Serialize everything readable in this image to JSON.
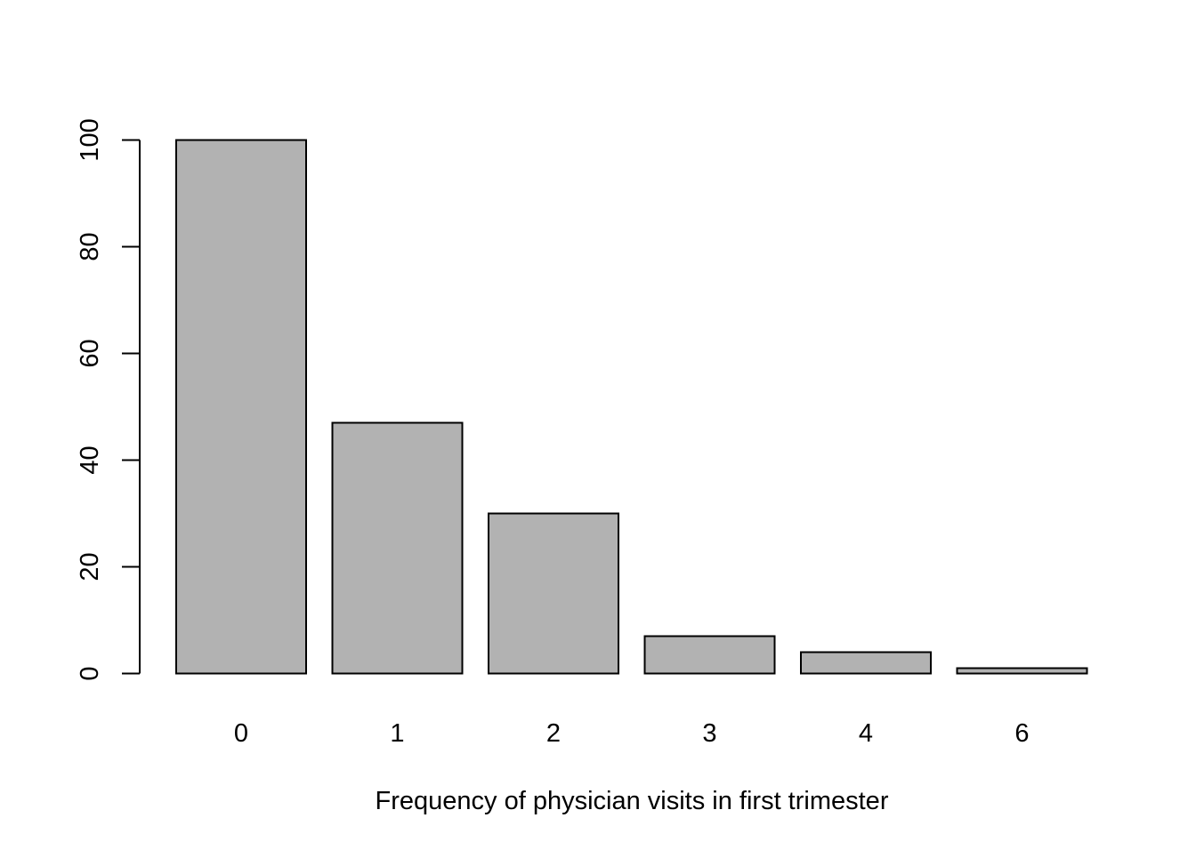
{
  "chart_data": {
    "type": "bar",
    "title": "",
    "xlabel": "Frequency of physician visits in first trimester",
    "ylabel": "",
    "categories": [
      "0",
      "1",
      "2",
      "3",
      "4",
      "6"
    ],
    "values": [
      100,
      47,
      30,
      7,
      4,
      1
    ],
    "ylim": [
      0,
      100
    ],
    "yticks": [
      0,
      20,
      40,
      60,
      80,
      100
    ],
    "bar_color": "#b2b2b2",
    "bar_border_color": "#000000",
    "grid": false,
    "legend": "none"
  }
}
